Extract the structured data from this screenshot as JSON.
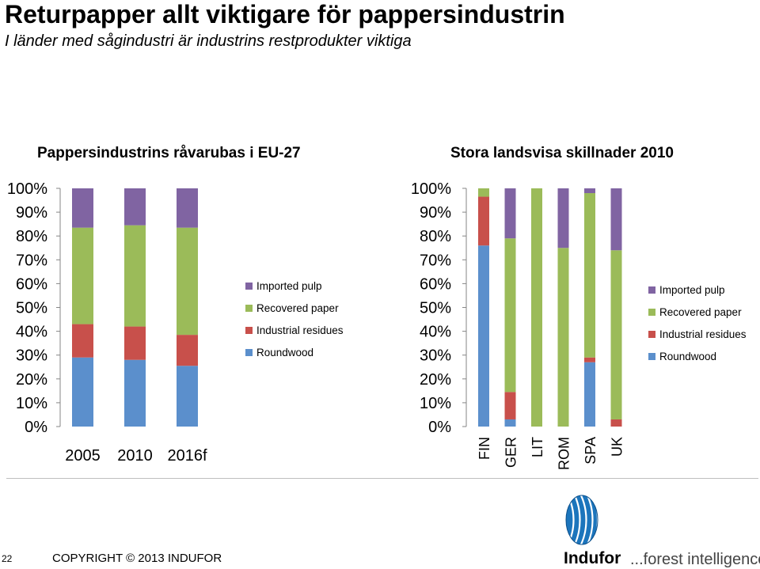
{
  "header": {
    "title": "Returpapper allt viktigare för pappersindustrin",
    "subtitle": "I länder med sågindustri är industrins restprodukter viktiga"
  },
  "colors": {
    "Roundwood": "#5b8fcc",
    "Industrial residues": "#c8504b",
    "Recovered paper": "#9bbb59",
    "Imported pulp": "#8064a2"
  },
  "chart_data": [
    {
      "type": "bar",
      "stacked": true,
      "title": "Pappersindustrins råvarubas i EU-27",
      "categories": [
        "2005",
        "2010",
        "2016f"
      ],
      "series": [
        {
          "name": "Roundwood",
          "values": [
            29,
            28,
            25.5
          ]
        },
        {
          "name": "Industrial residues",
          "values": [
            14,
            14,
            13
          ]
        },
        {
          "name": "Recovered paper",
          "values": [
            40.5,
            42.5,
            45
          ]
        },
        {
          "name": "Imported pulp",
          "values": [
            16.5,
            15.5,
            16.5
          ]
        }
      ],
      "yticks": [
        "0%",
        "10%",
        "20%",
        "30%",
        "40%",
        "50%",
        "60%",
        "70%",
        "80%",
        "90%",
        "100%"
      ],
      "ylim": [
        0,
        100
      ],
      "legend": [
        "Imported pulp",
        "Recovered paper",
        "Industrial residues",
        "Roundwood"
      ],
      "legend_position": "right"
    },
    {
      "type": "bar",
      "stacked": true,
      "title": "Stora landsvisa skillnader 2010",
      "categories": [
        "FIN",
        "GER",
        "LIT",
        "ROM",
        "SPA",
        "UK"
      ],
      "series": [
        {
          "name": "Roundwood",
          "values": [
            76,
            3,
            0,
            0,
            27,
            0
          ]
        },
        {
          "name": "Industrial residues",
          "values": [
            20.5,
            11.5,
            0,
            0,
            2,
            3
          ]
        },
        {
          "name": "Recovered paper",
          "values": [
            3.5,
            64.5,
            100,
            75,
            69,
            71
          ]
        },
        {
          "name": "Imported pulp",
          "values": [
            0,
            21,
            0,
            25,
            2,
            26
          ]
        }
      ],
      "yticks": [
        "0%",
        "10%",
        "20%",
        "30%",
        "40%",
        "50%",
        "60%",
        "70%",
        "80%",
        "90%",
        "100%"
      ],
      "ylim": [
        0,
        100
      ],
      "legend": [
        "Imported pulp",
        "Recovered paper",
        "Industrial residues",
        "Roundwood"
      ],
      "legend_position": "right"
    }
  ],
  "footer": {
    "page_number": "22",
    "copyright": "COPYRIGHT © 2013 INDUFOR",
    "brand": "Indufor",
    "tagline": "...forest intelligence"
  }
}
